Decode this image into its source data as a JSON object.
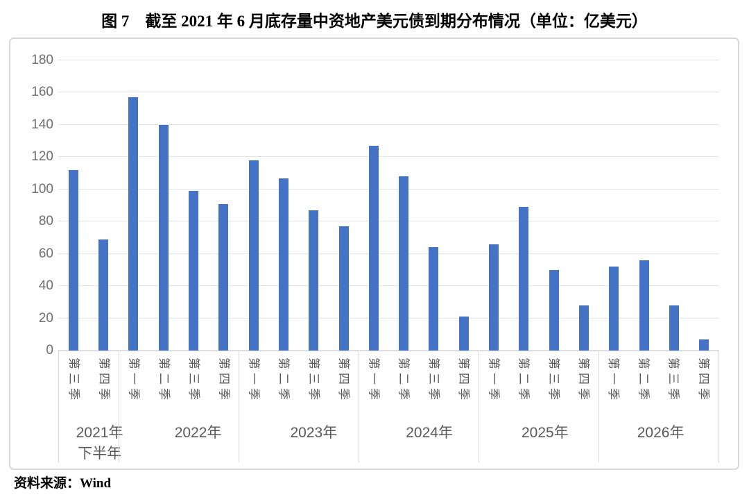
{
  "page": {
    "source_label": "资料来源：Wind"
  },
  "chart_data": {
    "type": "bar",
    "title": "图 7　截至 2021 年 6 月底存量中资地产美元债到期分布情况（单位：亿美元）",
    "unit_label": "亿美元",
    "bar_color": "#4472C4",
    "ylim": [
      0,
      180
    ],
    "yticks": [
      0,
      20,
      40,
      60,
      80,
      100,
      120,
      140,
      160,
      180
    ],
    "grid": true,
    "legend_position": "none",
    "x_axis_levels": [
      "quarter",
      "year"
    ],
    "groups": [
      {
        "year_lines": [
          "2021年",
          "下半年"
        ],
        "quarters": [
          "第三季",
          "第四季"
        ],
        "values": [
          112,
          69
        ]
      },
      {
        "year_lines": [
          "2022年"
        ],
        "quarters": [
          "第一季",
          "第二季",
          "第三季",
          "第四季"
        ],
        "values": [
          157,
          140,
          99,
          91
        ]
      },
      {
        "year_lines": [
          "2023年"
        ],
        "quarters": [
          "第一季",
          "第二季",
          "第三季",
          "第四季"
        ],
        "values": [
          118,
          107,
          87,
          77
        ]
      },
      {
        "year_lines": [
          "2024年"
        ],
        "quarters": [
          "第一季",
          "第二季",
          "第三季",
          "第四季"
        ],
        "values": [
          127,
          108,
          64,
          21
        ]
      },
      {
        "year_lines": [
          "2025年"
        ],
        "quarters": [
          "第一季",
          "第二季",
          "第三季",
          "第四季"
        ],
        "values": [
          66,
          89,
          50,
          28
        ]
      },
      {
        "year_lines": [
          "2026年"
        ],
        "quarters": [
          "第一季",
          "第二季",
          "第三季",
          "第四季"
        ],
        "values": [
          52,
          56,
          28,
          7
        ]
      }
    ]
  }
}
